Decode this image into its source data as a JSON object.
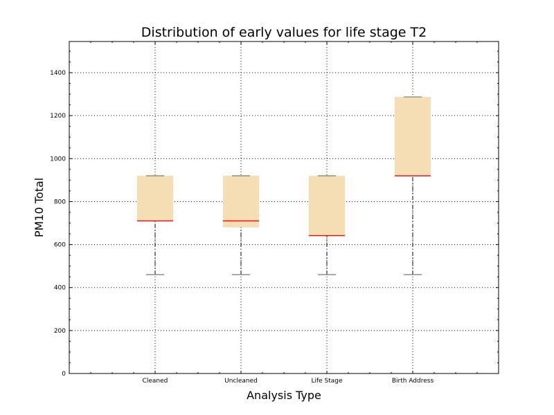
{
  "chart_data": {
    "type": "box",
    "title": "Distribution of early values for life stage T2",
    "xlabel": "Analysis Type",
    "ylabel": "PM10 Total",
    "ylim": [
      0,
      1545
    ],
    "yticks": [
      0,
      200,
      400,
      600,
      800,
      1000,
      1200,
      1400
    ],
    "categories": [
      "Cleaned",
      "Uncleaned",
      "Life Stage",
      "Birth Address"
    ],
    "boxes": [
      {
        "category": "Cleaned",
        "whisker_low": 460,
        "q1": 710,
        "median": 710,
        "q3": 920,
        "whisker_high": 920
      },
      {
        "category": "Uncleaned",
        "whisker_low": 460,
        "q1": 680,
        "median": 710,
        "q3": 920,
        "whisker_high": 920
      },
      {
        "category": "Life Stage",
        "whisker_low": 460,
        "q1": 642,
        "median": 642,
        "q3": 920,
        "whisker_high": 920
      },
      {
        "category": "Birth Address",
        "whisker_low": 460,
        "q1": 920,
        "median": 920,
        "q3": 1287,
        "whisker_high": 1287
      }
    ],
    "grid": true,
    "legend": "none",
    "colors": {
      "box_fill": "#f5deb3",
      "median": "#ff0000",
      "whisker": "#000000",
      "cap": "#808080",
      "grid": "#000000",
      "axes": "#000000"
    }
  }
}
